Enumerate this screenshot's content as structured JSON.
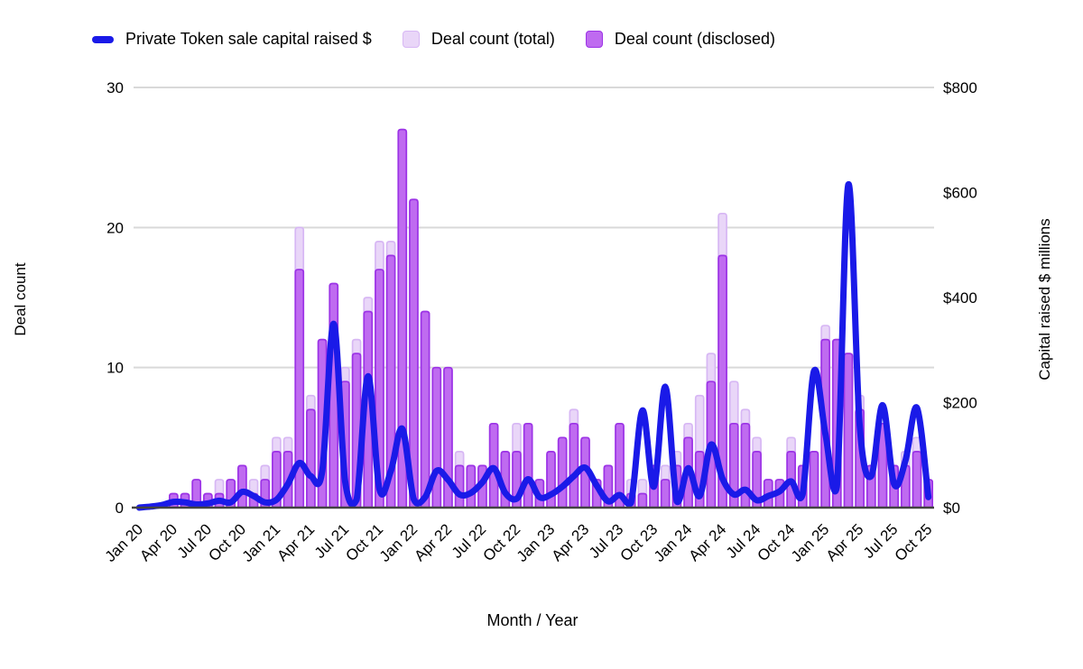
{
  "legend": {
    "line_series_label": "Private Token sale capital raised $",
    "total_series_label": "Deal count (total)",
    "disclosed_series_label": "Deal count (disclosed)"
  },
  "axes": {
    "left": {
      "title": "Deal count",
      "ticks": [
        0,
        10,
        20,
        30
      ],
      "max": 30
    },
    "right": {
      "title": "Capital raised $ millions",
      "ticks": [
        "$0",
        "$200",
        "$400",
        "$600",
        "$800"
      ],
      "max": 800
    },
    "x": {
      "title": "Month / Year",
      "label_every_n_months": 3
    }
  },
  "colors": {
    "line_blue": "#1a1ae8",
    "bar_total_fill": "#e9d6f8",
    "bar_total_stroke": "#d7b7f4",
    "bar_disclosed_fill": "#bf6bf0",
    "bar_disclosed_stroke": "#9c33e6",
    "gridline": "#d9d9d9",
    "axis_line": "#424242",
    "text": "#000000"
  },
  "chart_data": {
    "type": "combo bar + line",
    "title": "",
    "xlabel": "Month / Year",
    "ylabel_left": "Deal count",
    "ylabel_right": "Capital raised $ millions",
    "ylim_left": [
      0,
      30
    ],
    "ylim_right": [
      0,
      800
    ],
    "grid": "horizontal only",
    "legend_position": "top",
    "x": [
      "Jan 20",
      "Feb 20",
      "Mar 20",
      "Apr 20",
      "May 20",
      "Jun 20",
      "Jul 20",
      "Aug 20",
      "Sep 20",
      "Oct 20",
      "Nov 20",
      "Dec 20",
      "Jan 21",
      "Feb 21",
      "Mar 21",
      "Apr 21",
      "May 21",
      "Jun 21",
      "Jul 21",
      "Aug 21",
      "Sep 21",
      "Oct 21",
      "Nov 21",
      "Dec 21",
      "Jan 22",
      "Feb 22",
      "Mar 22",
      "Apr 22",
      "May 22",
      "Jun 22",
      "Jul 22",
      "Aug 22",
      "Sep 22",
      "Oct 22",
      "Nov 22",
      "Dec 22",
      "Jan 23",
      "Feb 23",
      "Mar 23",
      "Apr 23",
      "May 23",
      "Jun 23",
      "Jul 23",
      "Aug 23",
      "Sep 23",
      "Oct 23",
      "Nov 23",
      "Dec 23",
      "Jan 24",
      "Feb 24",
      "Mar 24",
      "Apr 24",
      "May 24",
      "Jun 24",
      "Jul 24",
      "Aug 24",
      "Sep 24",
      "Oct 24",
      "Nov 24",
      "Dec 24",
      "Jan 25",
      "Feb 25",
      "Mar 25",
      "Apr 25",
      "May 25",
      "Jun 25",
      "Jul 25",
      "Aug 25",
      "Sep 25",
      "Oct 25"
    ],
    "series": [
      {
        "name": "Deal count (total)",
        "type": "bar",
        "axis": "left",
        "values": [
          0,
          0,
          0,
          1,
          1,
          2,
          1,
          2,
          2,
          3,
          2,
          3,
          5,
          5,
          20,
          8,
          12,
          16,
          10,
          12,
          15,
          19,
          19,
          27,
          22,
          14,
          10,
          10,
          4,
          3,
          3,
          6,
          4,
          6,
          6,
          2,
          4,
          5,
          7,
          5,
          2,
          3,
          6,
          2,
          2,
          3,
          3,
          4,
          6,
          8,
          11,
          21,
          9,
          7,
          5,
          2,
          2,
          5,
          3,
          4,
          13,
          12,
          11,
          8,
          3,
          6,
          3,
          4,
          5,
          2
        ]
      },
      {
        "name": "Deal count (disclosed)",
        "type": "bar",
        "axis": "left",
        "values": [
          0,
          0,
          0,
          1,
          1,
          2,
          1,
          1,
          2,
          3,
          1,
          2,
          4,
          4,
          17,
          7,
          12,
          16,
          9,
          11,
          14,
          17,
          18,
          27,
          22,
          14,
          10,
          10,
          3,
          3,
          3,
          6,
          4,
          4,
          6,
          2,
          4,
          5,
          6,
          5,
          2,
          3,
          6,
          1,
          1,
          3,
          2,
          3,
          5,
          4,
          9,
          18,
          6,
          6,
          4,
          2,
          2,
          4,
          3,
          4,
          12,
          12,
          11,
          7,
          3,
          6,
          3,
          3,
          4,
          2
        ]
      },
      {
        "name": "Private Token sale capital raised $",
        "type": "line",
        "axis": "right",
        "values": [
          0,
          2,
          5,
          11,
          10,
          6,
          8,
          13,
          10,
          30,
          22,
          10,
          15,
          45,
          85,
          60,
          70,
          350,
          50,
          15,
          250,
          35,
          70,
          150,
          16,
          20,
          70,
          53,
          25,
          28,
          48,
          75,
          28,
          17,
          54,
          20,
          25,
          40,
          60,
          76,
          42,
          12,
          24,
          9,
          185,
          40,
          230,
          12,
          75,
          22,
          120,
          55,
          25,
          34,
          14,
          22,
          31,
          50,
          25,
          260,
          140,
          40,
          615,
          155,
          60,
          195,
          45,
          90,
          190,
          20
        ]
      }
    ]
  }
}
